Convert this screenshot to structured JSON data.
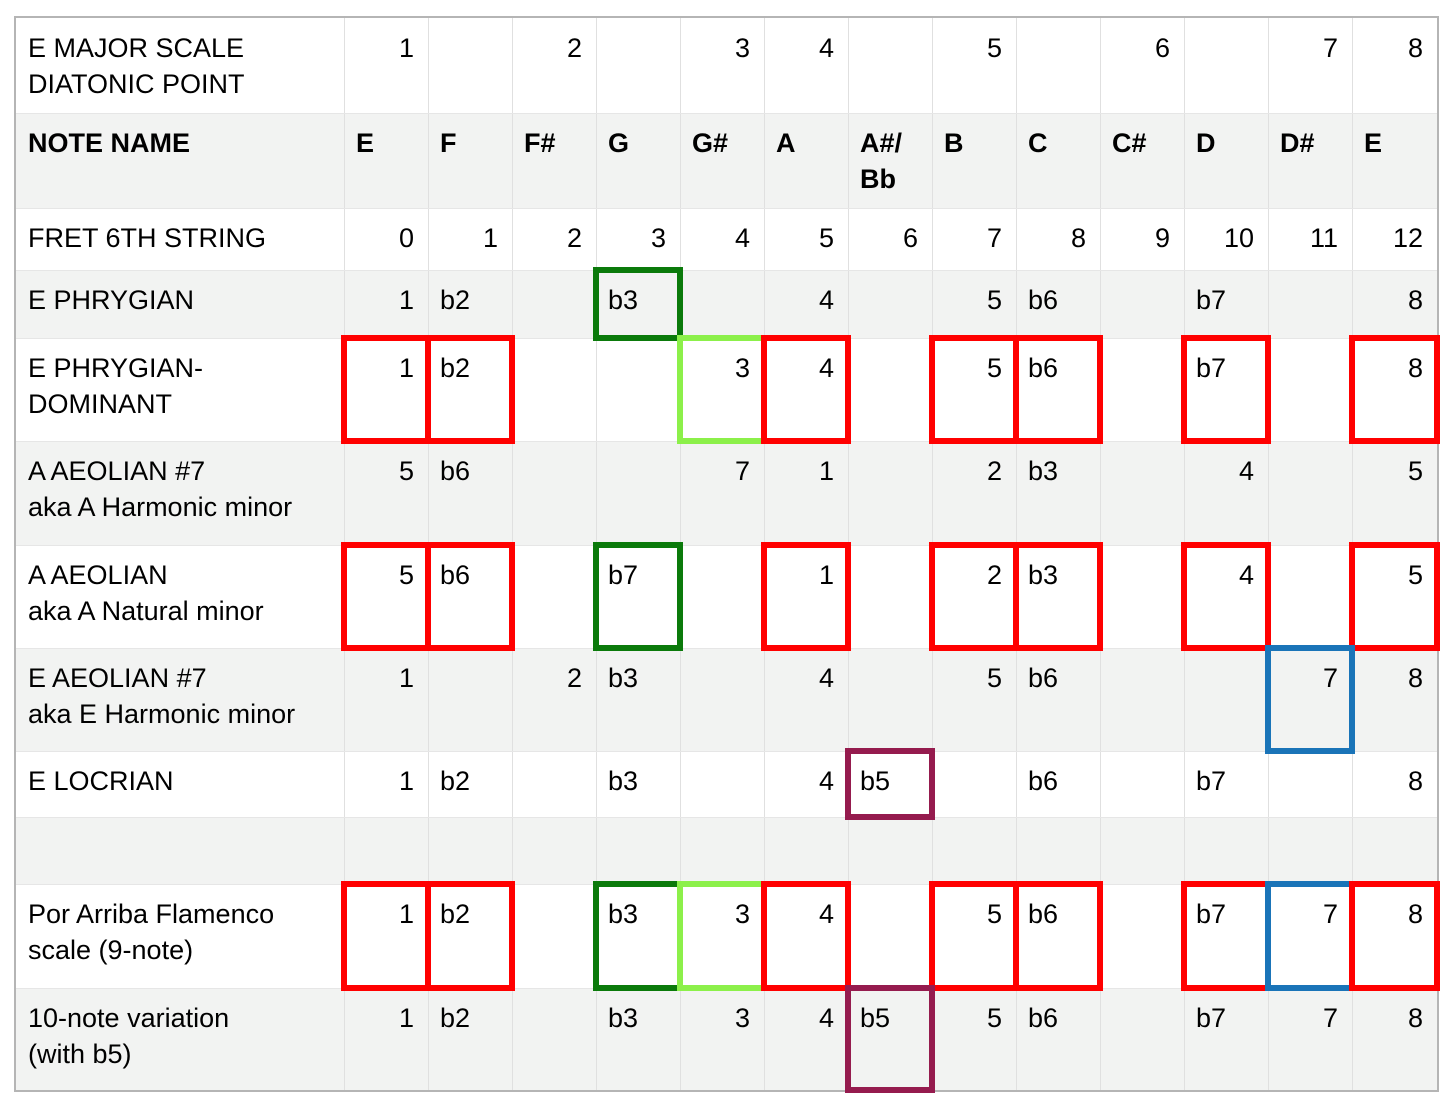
{
  "table": {
    "columns": [
      "E",
      "F",
      "F#",
      "G",
      "G#",
      "A",
      "A#/\nBb",
      "B",
      "C",
      "C#",
      "D",
      "D#",
      "E"
    ],
    "rows": [
      {
        "label": "E MAJOR SCALE\nDIATONIC POINT",
        "cells": [
          "1",
          "",
          "2",
          "",
          "3",
          "4",
          "",
          "5",
          "",
          "6",
          "",
          "7",
          "8"
        ]
      },
      {
        "label": "NOTE NAME",
        "header": true
      },
      {
        "label": "FRET 6TH STRING",
        "cells": [
          "0",
          "1",
          "2",
          "3",
          "4",
          "5",
          "6",
          "7",
          "8",
          "9",
          "10",
          "11",
          "12"
        ]
      },
      {
        "label": "E PHRYGIAN",
        "cells": [
          "1",
          "b2",
          "",
          "b3",
          "",
          "4",
          "",
          "5",
          "b6",
          "",
          "b7",
          "",
          "8"
        ]
      },
      {
        "label": "E PHRYGIAN-\nDOMINANT",
        "cells": [
          "1",
          "b2",
          "",
          "",
          "3",
          "4",
          "",
          "5",
          "b6",
          "",
          "b7",
          "",
          "8"
        ]
      },
      {
        "label": "A AEOLIAN #7\naka A Harmonic minor",
        "cells": [
          "5",
          "b6",
          "",
          "",
          "7",
          "1",
          "",
          "2",
          "b3",
          "",
          "4",
          "",
          "5"
        ]
      },
      {
        "label": "A AEOLIAN\naka A Natural minor",
        "cells": [
          "5",
          "b6",
          "",
          "b7",
          "",
          "1",
          "",
          "2",
          "b3",
          "",
          "4",
          "",
          "5"
        ]
      },
      {
        "label": "E AEOLIAN #7\naka E Harmonic minor",
        "cells": [
          "1",
          "",
          "2",
          "b3",
          "",
          "4",
          "",
          "5",
          "b6",
          "",
          "",
          "7",
          "8"
        ]
      },
      {
        "label": "E LOCRIAN",
        "cells": [
          "1",
          "b2",
          "",
          "b3",
          "",
          "4",
          "b5",
          "",
          "b6",
          "",
          "b7",
          "",
          "8"
        ]
      },
      {
        "label": "",
        "cells": [
          "",
          "",
          "",
          "",
          "",
          "",
          "",
          "",
          "",
          "",
          "",
          "",
          ""
        ]
      },
      {
        "label": "Por Arriba Flamenco\nscale (9-note)",
        "cells": [
          "1",
          "b2",
          "",
          "b3",
          "3",
          "4",
          "",
          "5",
          "b6",
          "",
          "b7",
          "7",
          "8"
        ]
      },
      {
        "label": "10-note variation\n(with b5)",
        "cells": [
          "1",
          "b2",
          "",
          "b3",
          "3",
          "4",
          "b5",
          "5",
          "b6",
          "",
          "b7",
          "7",
          "8"
        ]
      }
    ]
  },
  "colors": {
    "red": "#ff0000",
    "dark_green": "#0b7a0b",
    "light_green": "#8cf04a",
    "blue": "#1a74b8",
    "maroon": "#951b4e",
    "row_shade": "#f2f3f2"
  },
  "highlights": [
    {
      "row": 3,
      "col": 3,
      "color": "dark_green"
    },
    {
      "row": 4,
      "col": 0,
      "color": "red"
    },
    {
      "row": 4,
      "col": 1,
      "color": "red"
    },
    {
      "row": 4,
      "col": 4,
      "color": "light_green"
    },
    {
      "row": 4,
      "col": 5,
      "color": "red"
    },
    {
      "row": 4,
      "col": 7,
      "color": "red"
    },
    {
      "row": 4,
      "col": 8,
      "color": "red"
    },
    {
      "row": 4,
      "col": 10,
      "color": "red"
    },
    {
      "row": 4,
      "col": 12,
      "color": "red"
    },
    {
      "row": 6,
      "col": 0,
      "color": "red"
    },
    {
      "row": 6,
      "col": 1,
      "color": "red"
    },
    {
      "row": 6,
      "col": 3,
      "color": "dark_green"
    },
    {
      "row": 6,
      "col": 5,
      "color": "red"
    },
    {
      "row": 6,
      "col": 7,
      "color": "red"
    },
    {
      "row": 6,
      "col": 8,
      "color": "red"
    },
    {
      "row": 6,
      "col": 10,
      "color": "red"
    },
    {
      "row": 6,
      "col": 12,
      "color": "red"
    },
    {
      "row": 7,
      "col": 11,
      "color": "blue"
    },
    {
      "row": 8,
      "col": 6,
      "color": "maroon"
    },
    {
      "row": 10,
      "col": 0,
      "color": "red"
    },
    {
      "row": 10,
      "col": 1,
      "color": "red"
    },
    {
      "row": 10,
      "col": 3,
      "color": "dark_green"
    },
    {
      "row": 10,
      "col": 4,
      "color": "light_green"
    },
    {
      "row": 10,
      "col": 5,
      "color": "red"
    },
    {
      "row": 10,
      "col": 7,
      "color": "red"
    },
    {
      "row": 10,
      "col": 8,
      "color": "red"
    },
    {
      "row": 10,
      "col": 10,
      "color": "red"
    },
    {
      "row": 10,
      "col": 11,
      "color": "blue"
    },
    {
      "row": 10,
      "col": 12,
      "color": "red"
    },
    {
      "row": 11,
      "col": 6,
      "color": "maroon"
    }
  ]
}
